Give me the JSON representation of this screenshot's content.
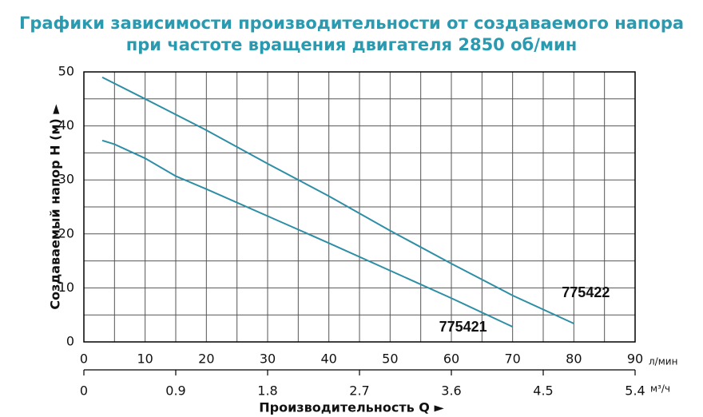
{
  "chart_data": {
    "type": "line",
    "title": "Графики зависимости производительности от создаваемого напора",
    "subtitle": "при частоте вращения двигателя 2850 об/мин",
    "y_label": "Создаваемый напор H (м) ►",
    "x_label": "Производительность Q ►",
    "x_unit": "л/мин",
    "x2_unit": "м³/ч",
    "xlim": [
      0,
      90
    ],
    "xticks": [
      0,
      10,
      20,
      30,
      40,
      50,
      60,
      70,
      80,
      90
    ],
    "x2lim": [
      0,
      5.4
    ],
    "x2ticks": [
      0,
      0.9,
      1.8,
      2.7,
      3.6,
      4.5,
      5.4
    ],
    "ylim": [
      0,
      50
    ],
    "yticks": [
      0,
      10,
      20,
      30,
      40,
      50
    ],
    "grid": true,
    "series": [
      {
        "name": "775422",
        "color": "#2e8ea6",
        "x": [
          3,
          10,
          20,
          30,
          40,
          50,
          60,
          70,
          80
        ],
        "values": [
          49,
          45,
          39.2,
          33,
          27,
          20.6,
          14.5,
          8.6,
          3.4
        ]
      },
      {
        "name": "775421",
        "color": "#2e8ea6",
        "x": [
          3,
          5,
          10,
          15,
          20,
          30,
          40,
          50,
          60,
          70
        ],
        "values": [
          37.3,
          36.6,
          34,
          30.7,
          28.3,
          23.3,
          18.3,
          13.2,
          8.1,
          2.8
        ]
      }
    ]
  }
}
